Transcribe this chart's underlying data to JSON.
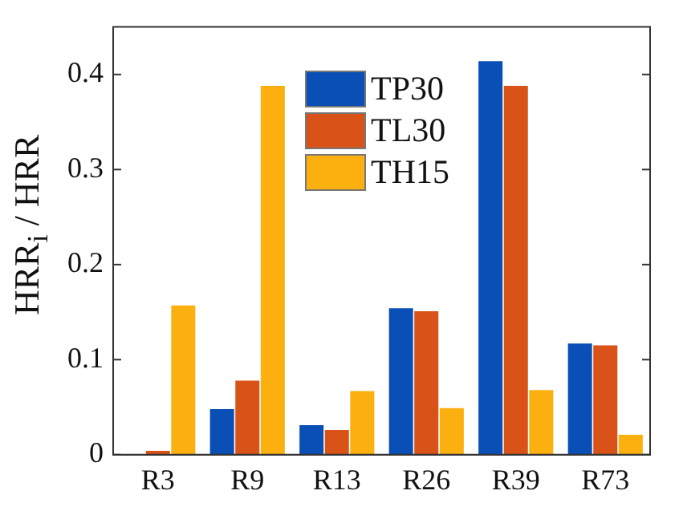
{
  "chart_data": {
    "type": "bar",
    "ylabel": "HRR$_{i}$ / HRR",
    "categories": [
      "R3",
      "R9",
      "R13",
      "R26",
      "R39",
      "R73"
    ],
    "series": [
      {
        "name": "TP30",
        "color": "#0a4fb5",
        "values": [
          null,
          0.048,
          0.031,
          0.154,
          0.414,
          0.117
        ]
      },
      {
        "name": "TL30",
        "color": "#d95319",
        "values": [
          0.004,
          0.078,
          0.026,
          0.151,
          0.388,
          0.115
        ]
      },
      {
        "name": "TH15",
        "color": "#fcb010",
        "values": [
          0.157,
          0.388,
          0.067,
          0.049,
          0.068,
          0.021
        ]
      }
    ],
    "ylim": [
      0,
      0.45
    ],
    "yticks": [
      0,
      0.1,
      0.2,
      0.3,
      0.4
    ],
    "grid": false,
    "legend": "top"
  }
}
